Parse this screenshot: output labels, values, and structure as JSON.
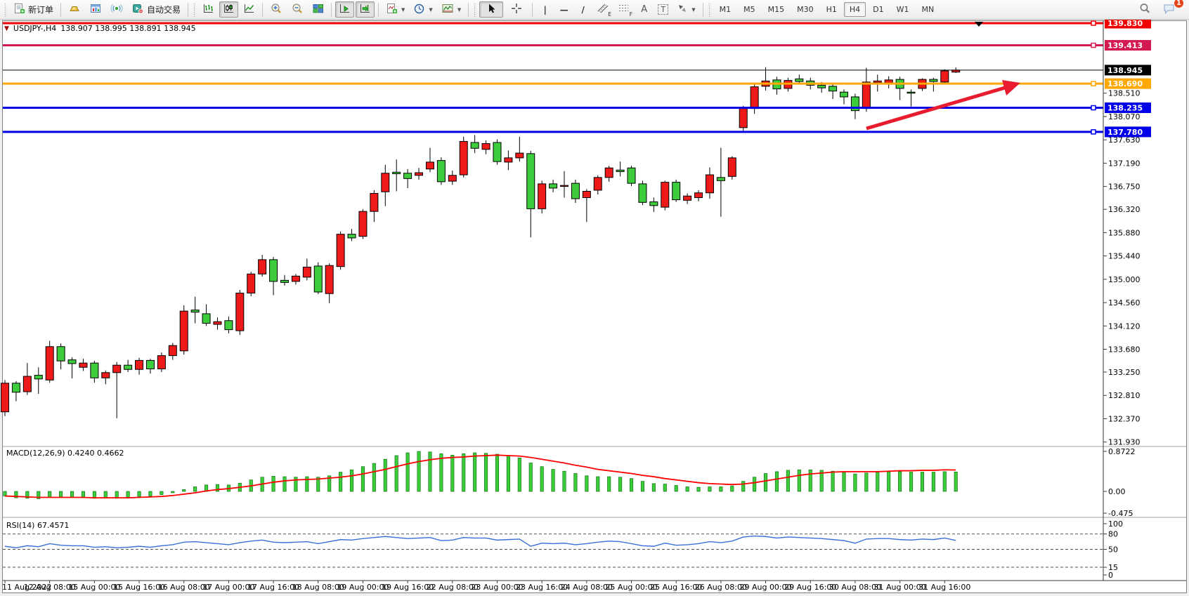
{
  "toolbar": {
    "new_order": "新订单",
    "auto_trading": "自动交易",
    "text_tool": "A",
    "label_tool": "T",
    "channel_sub": "E",
    "fibo_sub": "F",
    "timeframes": [
      "M1",
      "M5",
      "M15",
      "M30",
      "H1",
      "H4",
      "D1",
      "W1",
      "MN"
    ],
    "active_timeframe": "H4",
    "notification_badge": "1"
  },
  "chart": {
    "marker": "▼",
    "title": "USDJPY-,H4",
    "ohlc_text": "138.907 138.995 138.891 138.945"
  },
  "indicators": {
    "macd_label": "MACD(12,26,9) 0.4240 0.4662",
    "rsi_label": "RSI(14) 67.4571"
  },
  "colors": {
    "bull_candle": "#ee1a1a",
    "bear_candle": "#3ccc3c",
    "candle_border": "#000000",
    "macd_histogram": "#3ccc3c",
    "macd_histogram_border": "#117711",
    "macd_signal": "#ff0000",
    "rsi_line": "#3a6fd8",
    "trend_arrow": "#e81c2e",
    "current_price_line": "#000000"
  },
  "price_axis": {
    "tick_labels": [
      "138.510",
      "138.070",
      "137.630",
      "137.190",
      "136.750",
      "136.320",
      "135.880",
      "135.440",
      "135.000",
      "134.560",
      "134.120",
      "133.680",
      "133.250",
      "132.810",
      "132.370",
      "131.930"
    ],
    "levels": [
      {
        "label": "139.830",
        "value": 139.83,
        "color": "#f00000",
        "line_width": 3,
        "handle": true
      },
      {
        "label": "139.413",
        "value": 139.413,
        "color": "#d21a50",
        "line_width": 3,
        "handle": true
      },
      {
        "label": "138.945",
        "value": 138.945,
        "color": "#000000",
        "line_width": 1,
        "handle": false
      },
      {
        "label": "138.690",
        "value": 138.69,
        "color": "#ffa800",
        "line_width": 3,
        "handle": true
      },
      {
        "label": "138.235",
        "value": 138.235,
        "color": "#0000e8",
        "line_width": 3,
        "handle": true
      },
      {
        "label": "137.780",
        "value": 137.78,
        "color": "#0000e8",
        "line_width": 3,
        "handle": true
      }
    ]
  },
  "macd_axis": {
    "tick_labels": [
      "0.8722",
      "0.00",
      "-0.475"
    ],
    "tick_values": [
      0.8722,
      0,
      -0.475
    ]
  },
  "rsi_axis": {
    "tick_labels": [
      "100",
      "80",
      "50",
      "15",
      "0"
    ],
    "tick_values": [
      100,
      80,
      50,
      15,
      0
    ],
    "dashed_levels": [
      80,
      50,
      15
    ]
  },
  "chart_data": {
    "type": "candlestick",
    "symbol": "USDJPY-",
    "timeframe": "H4",
    "title": "USDJPY-,H4  138.907 138.995 138.891 138.945",
    "main_ylim": [
      131.86,
      139.87
    ],
    "label_every_n_bars": 4,
    "x_labels": [
      "11 Aug 2022",
      "12 Aug 08:00",
      "15 Aug 00:00",
      "15 Aug 16:00",
      "16 Aug 08:00",
      "17 Aug 00:00",
      "17 Aug 16:00",
      "18 Aug 08:00",
      "19 Aug 00:00",
      "19 Aug 16:00",
      "22 Aug 08:00",
      "23 Aug 00:00",
      "23 Aug 16:00",
      "24 Aug 08:00",
      "25 Aug 00:00",
      "25 Aug 16:00",
      "26 Aug 08:00",
      "29 Aug 00:00",
      "29 Aug 16:00",
      "30 Aug 08:00",
      "31 Aug 00:00",
      "31 Aug 16:00"
    ],
    "ohlc": [
      [
        132.5,
        133.1,
        132.42,
        133.04
      ],
      [
        133.04,
        133.08,
        132.7,
        132.87
      ],
      [
        132.88,
        133.42,
        132.82,
        133.17
      ],
      [
        133.19,
        133.34,
        132.84,
        133.12
      ],
      [
        133.1,
        133.84,
        133.05,
        133.73
      ],
      [
        133.73,
        133.79,
        133.3,
        133.46
      ],
      [
        133.48,
        133.53,
        133.13,
        133.41
      ],
      [
        133.34,
        133.5,
        133.27,
        133.42
      ],
      [
        133.42,
        133.46,
        133.05,
        133.14
      ],
      [
        133.14,
        133.28,
        133.02,
        133.24
      ],
      [
        133.24,
        133.44,
        132.38,
        133.38
      ],
      [
        133.38,
        133.48,
        133.25,
        133.3
      ],
      [
        133.3,
        133.52,
        133.2,
        133.47
      ],
      [
        133.47,
        133.5,
        133.22,
        133.31
      ],
      [
        133.31,
        133.62,
        133.25,
        133.56
      ],
      [
        133.56,
        133.8,
        133.48,
        133.75
      ],
      [
        133.65,
        134.51,
        133.58,
        134.4
      ],
      [
        134.42,
        134.67,
        134.17,
        134.38
      ],
      [
        134.35,
        134.53,
        134.12,
        134.17
      ],
      [
        134.15,
        134.28,
        134.05,
        134.2
      ],
      [
        134.22,
        134.3,
        133.98,
        134.05
      ],
      [
        134.03,
        134.8,
        133.95,
        134.74
      ],
      [
        134.74,
        135.14,
        134.68,
        135.1
      ],
      [
        135.1,
        135.46,
        135.05,
        135.37
      ],
      [
        135.37,
        135.42,
        134.7,
        134.96
      ],
      [
        134.98,
        135.08,
        134.88,
        134.94
      ],
      [
        134.96,
        135.1,
        134.9,
        135.06
      ],
      [
        135.04,
        135.39,
        134.98,
        135.23
      ],
      [
        135.25,
        135.32,
        134.72,
        134.76
      ],
      [
        134.73,
        135.3,
        134.55,
        135.26
      ],
      [
        135.24,
        135.9,
        135.18,
        135.85
      ],
      [
        135.85,
        135.95,
        135.72,
        135.78
      ],
      [
        135.81,
        136.32,
        135.76,
        136.28
      ],
      [
        136.28,
        136.68,
        136.08,
        136.62
      ],
      [
        136.65,
        137.16,
        136.38,
        137.0
      ],
      [
        137.02,
        137.26,
        136.66,
        136.99
      ],
      [
        137.0,
        137.08,
        136.72,
        136.9
      ],
      [
        136.96,
        137.1,
        136.88,
        137.01
      ],
      [
        137.08,
        137.48,
        137.02,
        137.21
      ],
      [
        137.24,
        137.3,
        136.78,
        136.84
      ],
      [
        136.85,
        137.05,
        136.78,
        136.96
      ],
      [
        136.97,
        137.69,
        136.92,
        137.6
      ],
      [
        137.58,
        137.72,
        137.38,
        137.47
      ],
      [
        137.45,
        137.62,
        137.36,
        137.56
      ],
      [
        137.58,
        137.64,
        137.16,
        137.22
      ],
      [
        137.21,
        137.43,
        137.06,
        137.29
      ],
      [
        137.29,
        137.69,
        137.22,
        137.38
      ],
      [
        137.37,
        137.42,
        135.79,
        136.33
      ],
      [
        136.33,
        136.86,
        136.24,
        136.8
      ],
      [
        136.8,
        136.88,
        136.64,
        136.72
      ],
      [
        136.76,
        137.04,
        136.54,
        136.77
      ],
      [
        136.81,
        136.88,
        136.44,
        136.52
      ],
      [
        136.54,
        136.7,
        136.08,
        136.66
      ],
      [
        136.68,
        136.96,
        136.6,
        136.92
      ],
      [
        136.92,
        137.14,
        136.84,
        137.1
      ],
      [
        137.06,
        137.22,
        136.94,
        137.03
      ],
      [
        137.1,
        137.14,
        136.76,
        136.81
      ],
      [
        136.8,
        136.86,
        136.4,
        136.45
      ],
      [
        136.46,
        136.54,
        136.27,
        136.39
      ],
      [
        136.36,
        136.86,
        136.3,
        136.83
      ],
      [
        136.83,
        136.88,
        136.46,
        136.5
      ],
      [
        136.49,
        136.62,
        136.42,
        136.57
      ],
      [
        136.54,
        136.68,
        136.47,
        136.63
      ],
      [
        136.63,
        137.11,
        136.52,
        136.97
      ],
      [
        136.92,
        137.48,
        136.18,
        136.86
      ],
      [
        136.94,
        137.32,
        136.88,
        137.29
      ],
      [
        137.86,
        138.27,
        137.8,
        138.22
      ],
      [
        138.22,
        138.68,
        138.12,
        138.63
      ],
      [
        138.64,
        139.0,
        138.56,
        138.74
      ],
      [
        138.76,
        138.82,
        138.48,
        138.59
      ],
      [
        138.6,
        138.8,
        138.54,
        138.75
      ],
      [
        138.78,
        138.86,
        138.68,
        138.73
      ],
      [
        138.74,
        138.8,
        138.58,
        138.66
      ],
      [
        138.66,
        138.72,
        138.52,
        138.61
      ],
      [
        138.64,
        138.7,
        138.4,
        138.55
      ],
      [
        138.53,
        138.58,
        138.3,
        138.44
      ],
      [
        138.44,
        138.5,
        138.02,
        138.18
      ],
      [
        138.22,
        138.99,
        138.16,
        138.72
      ],
      [
        138.71,
        138.86,
        138.54,
        138.74
      ],
      [
        138.7,
        138.83,
        138.6,
        138.76
      ],
      [
        138.77,
        138.82,
        138.38,
        138.6
      ],
      [
        138.53,
        138.58,
        138.26,
        138.51
      ],
      [
        138.6,
        138.79,
        138.55,
        138.77
      ],
      [
        138.77,
        138.8,
        138.54,
        138.73
      ],
      [
        138.72,
        138.96,
        138.68,
        138.93
      ],
      [
        138.907,
        138.995,
        138.891,
        138.945
      ]
    ],
    "macd": {
      "name": "MACD(12,26,9)",
      "current_histogram": 0.424,
      "current_signal": 0.4662,
      "ylim": [
        -0.566,
        0.979
      ],
      "histogram": [
        -0.1,
        -0.14,
        -0.15,
        -0.16,
        -0.13,
        -0.12,
        -0.13,
        -0.14,
        -0.15,
        -0.14,
        -0.15,
        -0.13,
        -0.11,
        -0.1,
        -0.07,
        -0.03,
        0.04,
        0.1,
        0.14,
        0.15,
        0.14,
        0.18,
        0.25,
        0.31,
        0.33,
        0.32,
        0.31,
        0.32,
        0.31,
        0.34,
        0.42,
        0.47,
        0.54,
        0.61,
        0.7,
        0.78,
        0.84,
        0.87,
        0.86,
        0.82,
        0.79,
        0.82,
        0.84,
        0.83,
        0.81,
        0.77,
        0.73,
        0.62,
        0.54,
        0.48,
        0.44,
        0.39,
        0.34,
        0.32,
        0.32,
        0.31,
        0.28,
        0.22,
        0.17,
        0.16,
        0.13,
        0.1,
        0.09,
        0.1,
        0.1,
        0.12,
        0.22,
        0.31,
        0.39,
        0.43,
        0.46,
        0.47,
        0.47,
        0.46,
        0.44,
        0.41,
        0.38,
        0.4,
        0.42,
        0.43,
        0.43,
        0.42,
        0.42,
        0.42,
        0.43,
        0.424
      ],
      "signal": [
        -0.1,
        -0.11,
        -0.12,
        -0.13,
        -0.13,
        -0.13,
        -0.13,
        -0.13,
        -0.14,
        -0.14,
        -0.14,
        -0.14,
        -0.13,
        -0.12,
        -0.11,
        -0.09,
        -0.06,
        -0.03,
        0.01,
        0.04,
        0.06,
        0.09,
        0.12,
        0.16,
        0.2,
        0.23,
        0.25,
        0.26,
        0.27,
        0.29,
        0.31,
        0.34,
        0.38,
        0.43,
        0.48,
        0.54,
        0.6,
        0.65,
        0.69,
        0.72,
        0.74,
        0.75,
        0.77,
        0.78,
        0.79,
        0.78,
        0.77,
        0.74,
        0.7,
        0.66,
        0.62,
        0.57,
        0.53,
        0.48,
        0.45,
        0.42,
        0.39,
        0.35,
        0.32,
        0.28,
        0.25,
        0.22,
        0.19,
        0.17,
        0.16,
        0.15,
        0.16,
        0.19,
        0.23,
        0.27,
        0.31,
        0.35,
        0.38,
        0.4,
        0.42,
        0.43,
        0.43,
        0.43,
        0.43,
        0.44,
        0.45,
        0.45,
        0.46,
        0.46,
        0.47,
        0.4662
      ]
    },
    "rsi": {
      "name": "RSI(14)",
      "current": 67.4571,
      "ylim": [
        0,
        100
      ],
      "values": [
        56,
        53,
        57,
        55,
        61,
        58,
        57,
        57,
        54,
        55,
        53,
        54,
        56,
        54,
        57,
        59,
        64,
        65,
        63,
        61,
        59,
        63,
        66,
        68,
        64,
        63,
        64,
        65,
        61,
        65,
        69,
        68,
        71,
        73,
        75,
        73,
        71,
        72,
        73,
        67,
        68,
        73,
        72,
        72,
        68,
        69,
        70,
        56,
        62,
        61,
        62,
        59,
        61,
        64,
        66,
        65,
        61,
        57,
        56,
        62,
        58,
        59,
        61,
        65,
        63,
        66,
        74,
        76,
        75,
        72,
        74,
        73,
        72,
        71,
        69,
        67,
        62,
        70,
        71,
        71,
        69,
        68,
        70,
        69,
        72,
        67.46
      ]
    },
    "annotations": {
      "trend_arrow": {
        "from": [
          1233,
          183
        ],
        "to": [
          1452,
          118
        ]
      },
      "down_triangle_marker": {
        "x": 1393,
        "y": 31
      }
    }
  }
}
